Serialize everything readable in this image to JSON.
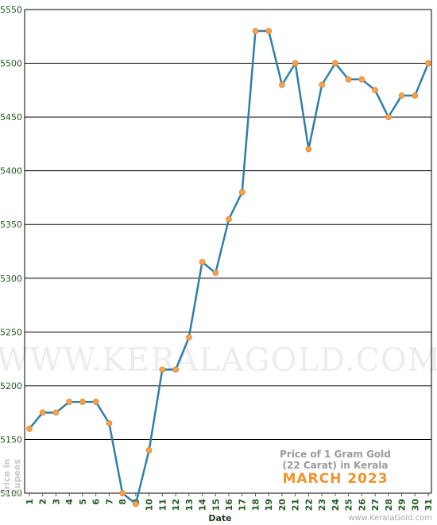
{
  "chart_data": {
    "type": "line",
    "title": "",
    "xlabel": "Date",
    "ylabel_lines": [
      "Price in",
      "Rupees"
    ],
    "ylim": [
      5100,
      5550
    ],
    "yticks": [
      5100,
      5150,
      5200,
      5250,
      5300,
      5350,
      5400,
      5450,
      5500,
      5550
    ],
    "grid": true,
    "x": [
      1,
      2,
      3,
      4,
      5,
      6,
      7,
      8,
      9,
      10,
      11,
      12,
      13,
      14,
      15,
      16,
      17,
      18,
      19,
      20,
      21,
      22,
      23,
      24,
      25,
      26,
      27,
      28,
      29,
      30,
      31
    ],
    "series": [
      {
        "values": [
          5160,
          5175,
          5175,
          5185,
          5185,
          5185,
          5165,
          5100,
          5090,
          5140,
          5215,
          5215,
          5245,
          5315,
          5305,
          5355,
          5380,
          5530,
          5530,
          5480,
          5500,
          5420,
          5480,
          5500,
          5485,
          5485,
          5475,
          5450,
          5470,
          5470,
          5500
        ]
      }
    ],
    "annotation": {
      "line1": "Price of 1 Gram Gold",
      "line2": "(22 Carat) in Kerala",
      "period": "MARCH 2023"
    },
    "watermark": "WWW.KERALAGOLD.COM",
    "source": "www.KeralaGold.com",
    "colors": {
      "line": "#2f7fa8",
      "marker": "#f5a24a",
      "grid": "#000000",
      "text": "#1f5a1f",
      "period": "#f0932b"
    }
  }
}
